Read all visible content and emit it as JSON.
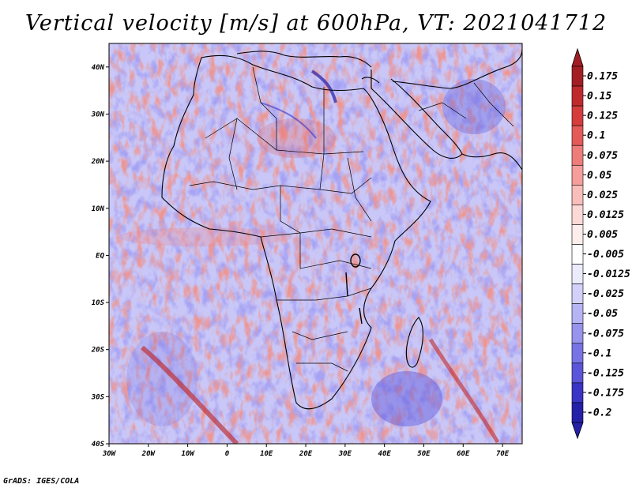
{
  "title": "Vertical velocity [m/s] at 600hPa, VT: 2021041712",
  "footer": "GrADS: IGES/COLA",
  "map": {
    "lon_range": [
      -30,
      75
    ],
    "lat_range": [
      -40,
      45
    ],
    "lon_ticks": [
      {
        "value": -30,
        "label": "30W"
      },
      {
        "value": -20,
        "label": "20W"
      },
      {
        "value": -10,
        "label": "10W"
      },
      {
        "value": 0,
        "label": "0"
      },
      {
        "value": 10,
        "label": "10E"
      },
      {
        "value": 20,
        "label": "20E"
      },
      {
        "value": 30,
        "label": "30E"
      },
      {
        "value": 40,
        "label": "40E"
      },
      {
        "value": 50,
        "label": "50E"
      },
      {
        "value": 60,
        "label": "60E"
      },
      {
        "value": 70,
        "label": "70E"
      }
    ],
    "lat_ticks": [
      {
        "value": 40,
        "label": "40N"
      },
      {
        "value": 30,
        "label": "30N"
      },
      {
        "value": 20,
        "label": "20N"
      },
      {
        "value": 10,
        "label": "10N"
      },
      {
        "value": 0,
        "label": "EQ"
      },
      {
        "value": -10,
        "label": "10S"
      },
      {
        "value": -20,
        "label": "20S"
      },
      {
        "value": -30,
        "label": "30S"
      },
      {
        "value": -40,
        "label": "40S"
      }
    ]
  },
  "colorbar": {
    "levels": [
      {
        "label": "0.175",
        "color": "#a31e22"
      },
      {
        "label": "0.15",
        "color": "#bf2a2d"
      },
      {
        "label": "0.125",
        "color": "#d53c3c"
      },
      {
        "label": "0.1",
        "color": "#e45a59"
      },
      {
        "label": "0.075",
        "color": "#ee7d7a"
      },
      {
        "label": "0.05",
        "color": "#f59e9b"
      },
      {
        "label": "0.025",
        "color": "#f9bdba"
      },
      {
        "label": "0.0125",
        "color": "#fcd9d6"
      },
      {
        "label": "0.005",
        "color": "#fdeeec"
      },
      {
        "label": "-0.005",
        "color": "#ffffff"
      },
      {
        "label": "-0.0125",
        "color": "#ecebfc"
      },
      {
        "label": "-0.025",
        "color": "#d3d1fa"
      },
      {
        "label": "-0.05",
        "color": "#b6b4f5"
      },
      {
        "label": "-0.075",
        "color": "#9794ee"
      },
      {
        "label": "-0.1",
        "color": "#7874e5"
      },
      {
        "label": "-0.125",
        "color": "#5a55d9"
      },
      {
        "label": "-0.175",
        "color": "#3a35c4"
      },
      {
        "label": "-0.2",
        "color": "#2520a8"
      }
    ],
    "top_color": "#a31e22",
    "bottom_color": "#2520a8"
  }
}
